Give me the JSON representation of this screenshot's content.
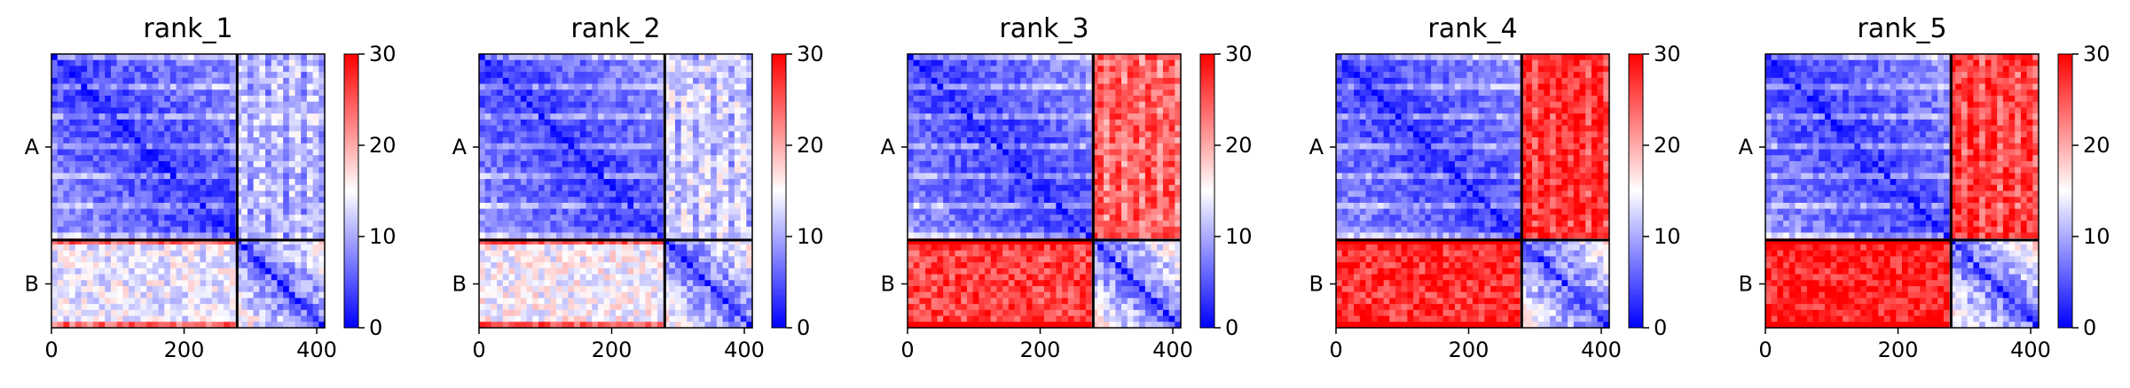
{
  "chart_data": [
    {
      "type": "heatmap",
      "title": "rank_1",
      "x_ticks": [
        0,
        200,
        400
      ],
      "xlim": [
        0,
        412
      ],
      "chain_labels": [
        "A",
        "B"
      ],
      "chain_boundaries": [
        0,
        280,
        412
      ],
      "colorbar": {
        "min": 0,
        "max": 30,
        "ticks": [
          0,
          10,
          20,
          30
        ],
        "colors": [
          "#0000ff",
          "#ffffff",
          "#ff0000"
        ]
      },
      "inter_chain_level": {
        "A_B": 12,
        "B_A": 14
      },
      "intra_chain_level": {
        "A": 6,
        "B": 9
      }
    },
    {
      "type": "heatmap",
      "title": "rank_2",
      "x_ticks": [
        0,
        200,
        400
      ],
      "xlim": [
        0,
        412
      ],
      "chain_labels": [
        "A",
        "B"
      ],
      "chain_boundaries": [
        0,
        280,
        412
      ],
      "colorbar": {
        "min": 0,
        "max": 30,
        "ticks": [
          0,
          10,
          20,
          30
        ],
        "colors": [
          "#0000ff",
          "#ffffff",
          "#ff0000"
        ]
      },
      "inter_chain_level": {
        "A_B": 13,
        "B_A": 15
      },
      "intra_chain_level": {
        "A": 6,
        "B": 9
      }
    },
    {
      "type": "heatmap",
      "title": "rank_3",
      "x_ticks": [
        0,
        200,
        400
      ],
      "xlim": [
        0,
        412
      ],
      "chain_labels": [
        "A",
        "B"
      ],
      "chain_boundaries": [
        0,
        280,
        412
      ],
      "colorbar": {
        "min": 0,
        "max": 30,
        "ticks": [
          0,
          10,
          20,
          30
        ],
        "colors": [
          "#0000ff",
          "#ffffff",
          "#ff0000"
        ]
      },
      "inter_chain_level": {
        "A_B": 25,
        "B_A": 26
      },
      "intra_chain_level": {
        "A": 6,
        "B": 9
      }
    },
    {
      "type": "heatmap",
      "title": "rank_4",
      "x_ticks": [
        0,
        200,
        400
      ],
      "xlim": [
        0,
        412
      ],
      "chain_labels": [
        "A",
        "B"
      ],
      "chain_boundaries": [
        0,
        280,
        412
      ],
      "colorbar": {
        "min": 0,
        "max": 30,
        "ticks": [
          0,
          10,
          20,
          30
        ],
        "colors": [
          "#0000ff",
          "#ffffff",
          "#ff0000"
        ]
      },
      "inter_chain_level": {
        "A_B": 28,
        "B_A": 27
      },
      "intra_chain_level": {
        "A": 6,
        "B": 9
      }
    },
    {
      "type": "heatmap",
      "title": "rank_5",
      "x_ticks": [
        0,
        200,
        400
      ],
      "xlim": [
        0,
        412
      ],
      "chain_labels": [
        "A",
        "B"
      ],
      "chain_boundaries": [
        0,
        280,
        412
      ],
      "colorbar": {
        "min": 0,
        "max": 30,
        "ticks": [
          0,
          10,
          20,
          30
        ],
        "colors": [
          "#0000ff",
          "#ffffff",
          "#ff0000"
        ]
      },
      "inter_chain_level": {
        "A_B": 27,
        "B_A": 28
      },
      "intra_chain_level": {
        "A": 6,
        "B": 9
      }
    }
  ]
}
